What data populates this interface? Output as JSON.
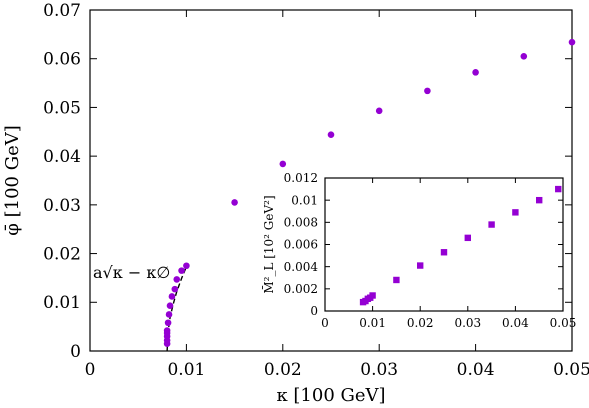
{
  "colors": {
    "marker": "#9400d3",
    "axis": "#000000",
    "fit_line": "#000000"
  },
  "chart_data": [
    {
      "type": "scatter",
      "title": "",
      "xlabel": "κ [100 GeV]",
      "ylabel": "φ̄ [100 GeV]",
      "xlim": [
        0,
        0.05
      ],
      "ylim": [
        0,
        0.07
      ],
      "xticks": [
        "0",
        "0.01",
        "0.02",
        "0.03",
        "0.04",
        "0.05"
      ],
      "yticks": [
        "0",
        "0.01",
        "0.02",
        "0.03",
        "0.04",
        "0.05",
        "0.06",
        "0.07"
      ],
      "grid": false,
      "legend": "none",
      "marker": "circle",
      "fit_label": "a√κ − κ∅",
      "series": [
        {
          "x": [
            0.008,
            0.008,
            0.008,
            0.008,
            0.008,
            0.0081,
            0.0082,
            0.0083,
            0.0085,
            0.0088,
            0.009,
            0.0095,
            0.01,
            0.015,
            0.02,
            0.025,
            0.03,
            0.035,
            0.04,
            0.045,
            0.05
          ],
          "y": [
            0.0015,
            0.0022,
            0.003,
            0.0037,
            0.0042,
            0.0058,
            0.0075,
            0.0093,
            0.0112,
            0.0127,
            0.0147,
            0.0165,
            0.0175,
            0.0305,
            0.0384,
            0.0444,
            0.0493,
            0.0534,
            0.0572,
            0.0605,
            0.0634
          ]
        }
      ],
      "fit_x": [
        0.008,
        0.0081,
        0.0083,
        0.0086,
        0.009,
        0.0095,
        0.01
      ],
      "fit_y": [
        0.0,
        0.0039,
        0.0068,
        0.0094,
        0.0122,
        0.0149,
        0.0173
      ]
    },
    {
      "type": "scatter",
      "title": "",
      "xlabel": "",
      "ylabel": "M̄²_L [10² GeV²]",
      "xlim": [
        0,
        0.05
      ],
      "ylim": [
        0,
        0.012
      ],
      "xticks": [
        "0",
        "0.01",
        "0.02",
        "0.03",
        "0.04",
        "0.05"
      ],
      "yticks": [
        "0",
        "0.002",
        "0.004",
        "0.006",
        "0.008",
        "0.01",
        "0.012"
      ],
      "grid": false,
      "legend": "none",
      "marker": "square",
      "series": [
        {
          "x": [
            0.008,
            0.0085,
            0.009,
            0.0095,
            0.01,
            0.015,
            0.02,
            0.025,
            0.03,
            0.035,
            0.04,
            0.045,
            0.049
          ],
          "y": [
            0.0008,
            0.0009,
            0.0011,
            0.0012,
            0.0014,
            0.0028,
            0.0041,
            0.0053,
            0.0066,
            0.0078,
            0.0089,
            0.01,
            0.011
          ]
        }
      ]
    }
  ]
}
